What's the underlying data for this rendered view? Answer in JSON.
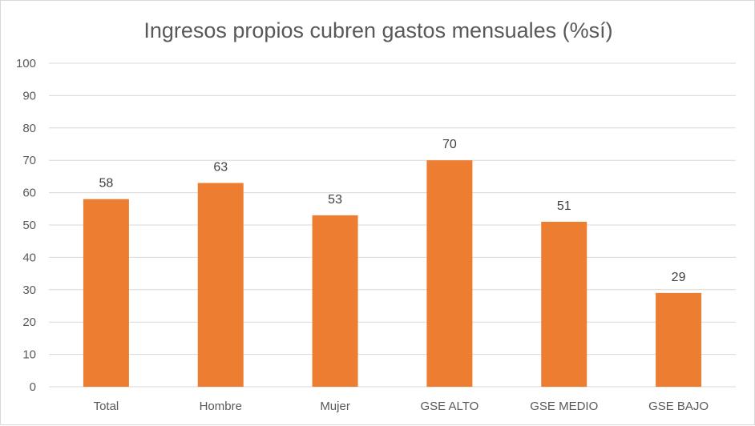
{
  "chart_data": {
    "type": "bar",
    "title": "Ingresos propios cubren gastos mensuales (%sí)",
    "categories": [
      "Total",
      "Hombre",
      "Mujer",
      "GSE ALTO",
      "GSE MEDIO",
      "GSE BAJO"
    ],
    "values": [
      58,
      63,
      53,
      70,
      51,
      29
    ],
    "ylim": [
      0,
      100
    ],
    "yticks": [
      0,
      10,
      20,
      30,
      40,
      50,
      60,
      70,
      80,
      90,
      100
    ],
    "grid": true,
    "legend": "none",
    "bar_color": "#ed7d31"
  }
}
